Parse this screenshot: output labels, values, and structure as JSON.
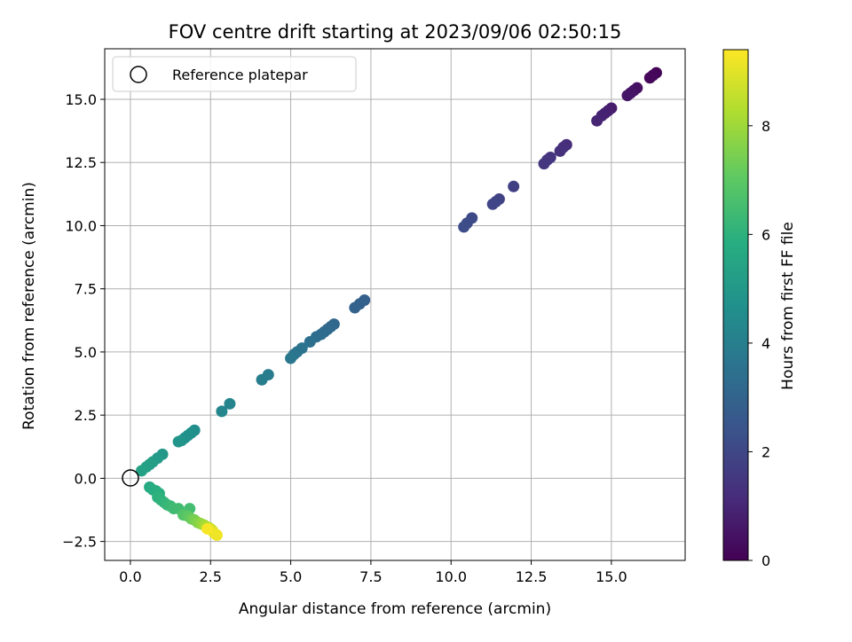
{
  "chart_data": {
    "type": "scatter",
    "title": "FOV centre drift starting at 2023/09/06 02:50:15",
    "xlabel": "Angular distance from reference (arcmin)",
    "ylabel": "Rotation from reference (arcmin)",
    "xlim": [
      -0.8,
      17.3
    ],
    "ylim": [
      -3.25,
      17.0
    ],
    "xticks": [
      0.0,
      2.5,
      5.0,
      7.5,
      10.0,
      12.5,
      15.0
    ],
    "xtick_labels": [
      "0.0",
      "2.5",
      "5.0",
      "7.5",
      "10.0",
      "12.5",
      "15.0"
    ],
    "yticks": [
      -2.5,
      0.0,
      2.5,
      5.0,
      7.5,
      10.0,
      12.5,
      15.0
    ],
    "ytick_labels": [
      "−2.5",
      "0.0",
      "2.5",
      "5.0",
      "7.5",
      "10.0",
      "12.5",
      "15.0"
    ],
    "grid": true,
    "legend": {
      "placement": "top-left",
      "entries": [
        "Reference platepar"
      ]
    },
    "reference_point": {
      "x": 0.0,
      "y": 0.0
    },
    "colorbar": {
      "label": "Hours from first FF file",
      "min": 0,
      "max": 9.4,
      "ticks": [
        0,
        2,
        4,
        6,
        8
      ],
      "tick_labels": [
        "0",
        "2",
        "4",
        "6",
        "8"
      ],
      "colormap": "viridis"
    },
    "points": [
      {
        "x": 16.4,
        "y": 16.05,
        "h": 0.1
      },
      {
        "x": 16.3,
        "y": 15.95,
        "h": 0.15
      },
      {
        "x": 16.2,
        "y": 15.85,
        "h": 0.2
      },
      {
        "x": 15.8,
        "y": 15.45,
        "h": 0.4
      },
      {
        "x": 15.7,
        "y": 15.35,
        "h": 0.45
      },
      {
        "x": 15.6,
        "y": 15.25,
        "h": 0.5
      },
      {
        "x": 15.5,
        "y": 15.15,
        "h": 0.55
      },
      {
        "x": 15.0,
        "y": 14.65,
        "h": 0.75
      },
      {
        "x": 14.9,
        "y": 14.55,
        "h": 0.8
      },
      {
        "x": 14.8,
        "y": 14.45,
        "h": 0.85
      },
      {
        "x": 14.7,
        "y": 14.35,
        "h": 0.9
      },
      {
        "x": 14.55,
        "y": 14.15,
        "h": 0.95
      },
      {
        "x": 13.6,
        "y": 13.2,
        "h": 1.2
      },
      {
        "x": 13.5,
        "y": 13.1,
        "h": 1.25
      },
      {
        "x": 13.4,
        "y": 12.95,
        "h": 1.3
      },
      {
        "x": 13.1,
        "y": 12.7,
        "h": 1.4
      },
      {
        "x": 13.0,
        "y": 12.6,
        "h": 1.45
      },
      {
        "x": 12.9,
        "y": 12.45,
        "h": 1.5
      },
      {
        "x": 11.95,
        "y": 11.55,
        "h": 1.75
      },
      {
        "x": 11.5,
        "y": 11.05,
        "h": 1.85
      },
      {
        "x": 11.4,
        "y": 10.95,
        "h": 1.9
      },
      {
        "x": 11.3,
        "y": 10.85,
        "h": 1.95
      },
      {
        "x": 10.65,
        "y": 10.3,
        "h": 2.1
      },
      {
        "x": 10.5,
        "y": 10.1,
        "h": 2.15
      },
      {
        "x": 10.4,
        "y": 9.95,
        "h": 2.2
      },
      {
        "x": 7.3,
        "y": 7.05,
        "h": 2.85
      },
      {
        "x": 7.15,
        "y": 6.9,
        "h": 2.9
      },
      {
        "x": 7.0,
        "y": 6.75,
        "h": 2.95
      },
      {
        "x": 6.35,
        "y": 6.1,
        "h": 3.1
      },
      {
        "x": 6.25,
        "y": 6.0,
        "h": 3.15
      },
      {
        "x": 6.15,
        "y": 5.9,
        "h": 3.2
      },
      {
        "x": 6.05,
        "y": 5.8,
        "h": 3.25
      },
      {
        "x": 5.95,
        "y": 5.7,
        "h": 3.3
      },
      {
        "x": 5.8,
        "y": 5.6,
        "h": 3.35
      },
      {
        "x": 5.6,
        "y": 5.4,
        "h": 3.45
      },
      {
        "x": 5.35,
        "y": 5.15,
        "h": 3.55
      },
      {
        "x": 5.2,
        "y": 5.0,
        "h": 3.6
      },
      {
        "x": 5.1,
        "y": 4.9,
        "h": 3.65
      },
      {
        "x": 5.0,
        "y": 4.75,
        "h": 3.7
      },
      {
        "x": 4.3,
        "y": 4.1,
        "h": 3.9
      },
      {
        "x": 4.1,
        "y": 3.9,
        "h": 3.95
      },
      {
        "x": 3.1,
        "y": 2.95,
        "h": 4.2
      },
      {
        "x": 2.85,
        "y": 2.65,
        "h": 4.3
      },
      {
        "x": 2.0,
        "y": 1.9,
        "h": 4.6
      },
      {
        "x": 1.9,
        "y": 1.8,
        "h": 4.65
      },
      {
        "x": 1.8,
        "y": 1.7,
        "h": 4.7
      },
      {
        "x": 1.7,
        "y": 1.6,
        "h": 4.75
      },
      {
        "x": 1.6,
        "y": 1.5,
        "h": 4.8
      },
      {
        "x": 1.5,
        "y": 1.45,
        "h": 4.85
      },
      {
        "x": 1.0,
        "y": 0.95,
        "h": 5.0
      },
      {
        "x": 0.85,
        "y": 0.8,
        "h": 5.1
      },
      {
        "x": 0.7,
        "y": 0.65,
        "h": 5.2
      },
      {
        "x": 0.6,
        "y": 0.55,
        "h": 5.25
      },
      {
        "x": 0.5,
        "y": 0.45,
        "h": 5.3
      },
      {
        "x": 0.35,
        "y": 0.3,
        "h": 5.4
      },
      {
        "x": 0.6,
        "y": -0.35,
        "h": 5.7
      },
      {
        "x": 0.7,
        "y": -0.45,
        "h": 5.8
      },
      {
        "x": 0.8,
        "y": -0.5,
        "h": 5.85
      },
      {
        "x": 0.9,
        "y": -0.6,
        "h": 5.9
      },
      {
        "x": 0.85,
        "y": -0.75,
        "h": 6.0
      },
      {
        "x": 0.95,
        "y": -0.85,
        "h": 6.05
      },
      {
        "x": 1.05,
        "y": -0.95,
        "h": 6.1
      },
      {
        "x": 1.15,
        "y": -1.05,
        "h": 6.2
      },
      {
        "x": 1.25,
        "y": -1.1,
        "h": 6.3
      },
      {
        "x": 1.35,
        "y": -1.2,
        "h": 6.4
      },
      {
        "x": 1.5,
        "y": -1.2,
        "h": 6.45
      },
      {
        "x": 1.85,
        "y": -1.2,
        "h": 6.5
      },
      {
        "x": 1.65,
        "y": -1.45,
        "h": 6.8
      },
      {
        "x": 1.8,
        "y": -1.5,
        "h": 7.0
      },
      {
        "x": 1.9,
        "y": -1.6,
        "h": 7.2
      },
      {
        "x": 2.0,
        "y": -1.65,
        "h": 7.4
      },
      {
        "x": 2.1,
        "y": -1.75,
        "h": 7.6
      },
      {
        "x": 2.2,
        "y": -1.8,
        "h": 7.8
      },
      {
        "x": 2.3,
        "y": -1.85,
        "h": 8.0
      },
      {
        "x": 2.35,
        "y": -1.9,
        "h": 8.2
      },
      {
        "x": 2.45,
        "y": -1.95,
        "h": 8.4
      },
      {
        "x": 2.5,
        "y": -2.0,
        "h": 8.6
      },
      {
        "x": 2.55,
        "y": -2.05,
        "h": 8.8
      },
      {
        "x": 2.6,
        "y": -2.15,
        "h": 9.0
      },
      {
        "x": 2.65,
        "y": -2.2,
        "h": 9.1
      },
      {
        "x": 2.7,
        "y": -2.25,
        "h": 9.2
      },
      {
        "x": 2.4,
        "y": -2.0,
        "h": 9.3
      }
    ]
  }
}
